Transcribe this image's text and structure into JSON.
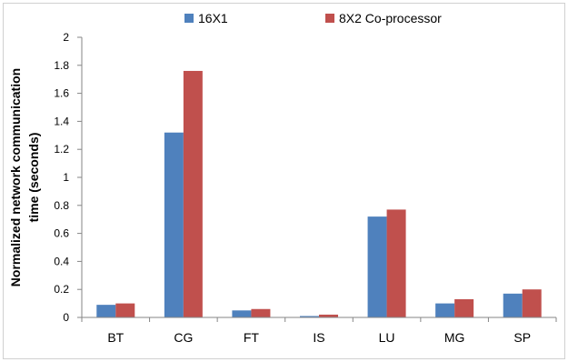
{
  "chart_data": {
    "type": "bar",
    "categories": [
      "BT",
      "CG",
      "FT",
      "IS",
      "LU",
      "MG",
      "SP"
    ],
    "series": [
      {
        "name": "16X1",
        "color": "#4f81bd",
        "values": [
          0.09,
          1.32,
          0.05,
          0.01,
          0.72,
          0.1,
          0.17
        ]
      },
      {
        "name": "8X2 Co-processor",
        "color": "#c0504d",
        "values": [
          0.1,
          1.76,
          0.06,
          0.02,
          0.77,
          0.13,
          0.2
        ]
      }
    ],
    "ylabel_line1": "Normalized network communication",
    "ylabel_line2": "time (seconds)",
    "ylim": [
      0,
      2
    ],
    "yticks": [
      "0",
      "0.2",
      "0.4",
      "0.6",
      "0.8",
      "1",
      "1.2",
      "1.4",
      "1.6",
      "1.8",
      "2"
    ],
    "grid": false,
    "legend": "top"
  }
}
